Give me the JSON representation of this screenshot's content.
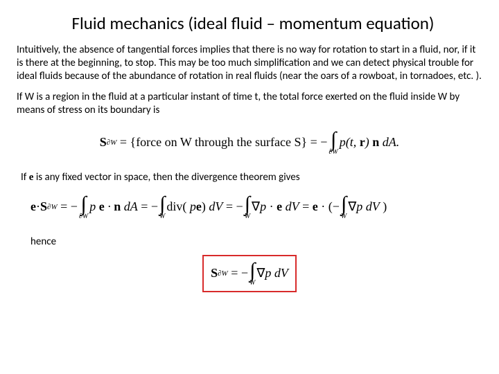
{
  "title": "Fluid mechanics (ideal fluid – momentum equation)",
  "para1": "Intuitively, the absence of tangential forces implies that there is no way for rotation to start in a fluid, nor, if it is there at the beginning, to stop. This may be too much simplification and we can detect physical trouble for ideal fluids because of the abundance of rotation in real fluids (near the oars of a rowboat, in tornadoes, etc. ).",
  "para2": "If W is a region in the fluid at a particular instant of time t, the total force exerted on the fluid inside W by means of stress on its boundary is",
  "para3_prefix": "If ",
  "para3_mid": " is any fixed vector in space, then the divergence theorem gives",
  "hence": "hence",
  "eq1": {
    "lhs_S": "S",
    "lhs_sub": "∂W",
    "bracket_text": "force on W through the surface S",
    "int_sub": "∂W",
    "after_int": "p(t, r) n dA."
  },
  "eq2": {
    "e": "e",
    "dot": " · ",
    "S": "S",
    "sub": "∂W",
    "seg1": "p e · n dA",
    "div": "div( p e) dV",
    "grad1": "∇p · e dV",
    "grad2": "∇p dV )",
    "W": "W"
  },
  "eq3": {
    "S": "S",
    "sub": "∂W",
    "body": "∇p dV",
    "W": "W"
  },
  "colors": {
    "box_border": "#d82a2a",
    "text": "#000000",
    "bg": "#ffffff"
  }
}
